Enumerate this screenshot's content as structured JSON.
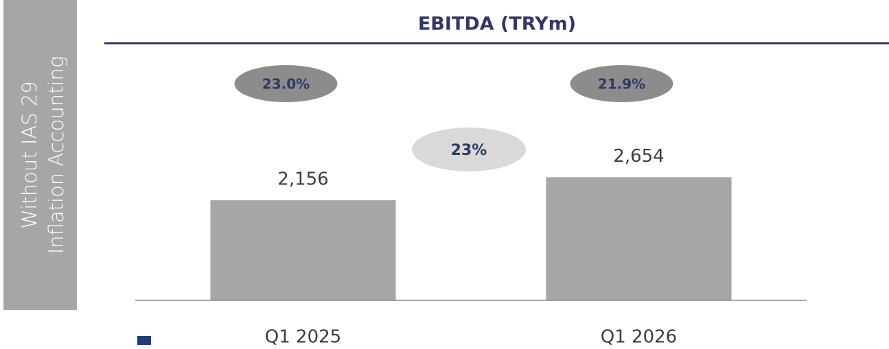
{
  "chart_data": {
    "type": "bar",
    "title": "EBITDA (TRYm)",
    "side_label": [
      "Without  IAS 29",
      "Inflation Accounting"
    ],
    "categories": [
      "Q1 2025",
      "Q1 2026"
    ],
    "values": [
      2156,
      2654
    ],
    "value_labels": [
      "2,156",
      "2,654"
    ],
    "color": "#a6a6a6",
    "ylim": [
      0,
      6000
    ],
    "margins": [
      "23.0%",
      "21.9%"
    ],
    "growth": "23%"
  }
}
